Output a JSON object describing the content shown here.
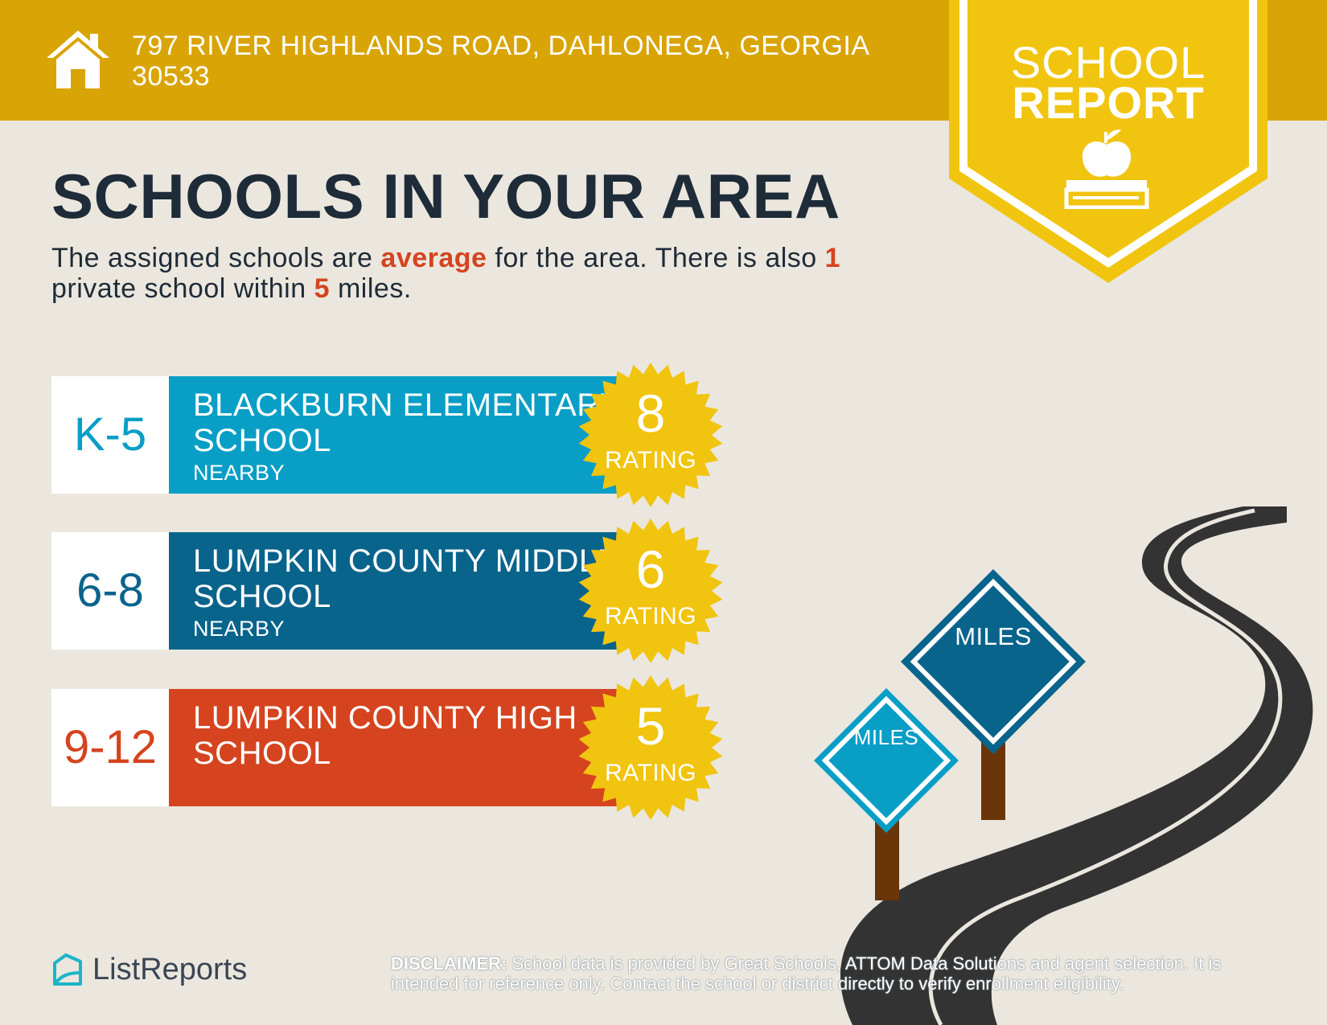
{
  "header": {
    "address": "797 RIVER HIGHLANDS ROAD, DAHLONEGA, GEORGIA 30533",
    "home_icon": "house-icon"
  },
  "badge": {
    "line1": "SCHOOL",
    "line2": "REPORT",
    "icon": "apple-on-book-icon",
    "color": "#f1c40f"
  },
  "main": {
    "title": "SCHOOLS IN YOUR AREA",
    "summary": {
      "part1": "The assigned schools are ",
      "rating_word": "average",
      "part2": " for the area. There is also ",
      "private_count": "1",
      "part3": " private school within ",
      "miles": "5",
      "part4": " miles."
    }
  },
  "schools": [
    {
      "grades": "K-5",
      "name": "BLACKBURN ELEMENTARY SCHOOL",
      "distance": "NEARBY",
      "rating": "8",
      "rating_label": "RATING",
      "color": "#099ec6"
    },
    {
      "grades": "6-8",
      "name": "LUMPKIN COUNTY MIDDLE SCHOOL",
      "distance": "NEARBY",
      "rating": "6",
      "rating_label": "RATING",
      "color": "#09648c"
    },
    {
      "grades": "9-12",
      "name": "LUMPKIN COUNTY HIGH SCHOOL",
      "distance": "",
      "rating": "5",
      "rating_label": "RATING",
      "color": "#d5441f"
    }
  ],
  "illustration": {
    "sign_large": "MILES",
    "sign_small": "MILES"
  },
  "footer": {
    "logo_text": "ListReports",
    "logo_icon": "listreports-logo-icon",
    "disclaimer_label": "DISCLAIMER:",
    "disclaimer_text": " School data is provided by Great Schools, ATTOM Data Solutions and agent selection. It is intended for reference only. Contact the school or district directly to verify enrollment eligibility."
  },
  "colors": {
    "background": "#ebe7de",
    "header": "#d9a406",
    "highlight": "#d4441f",
    "seal": "#f1c40f"
  }
}
